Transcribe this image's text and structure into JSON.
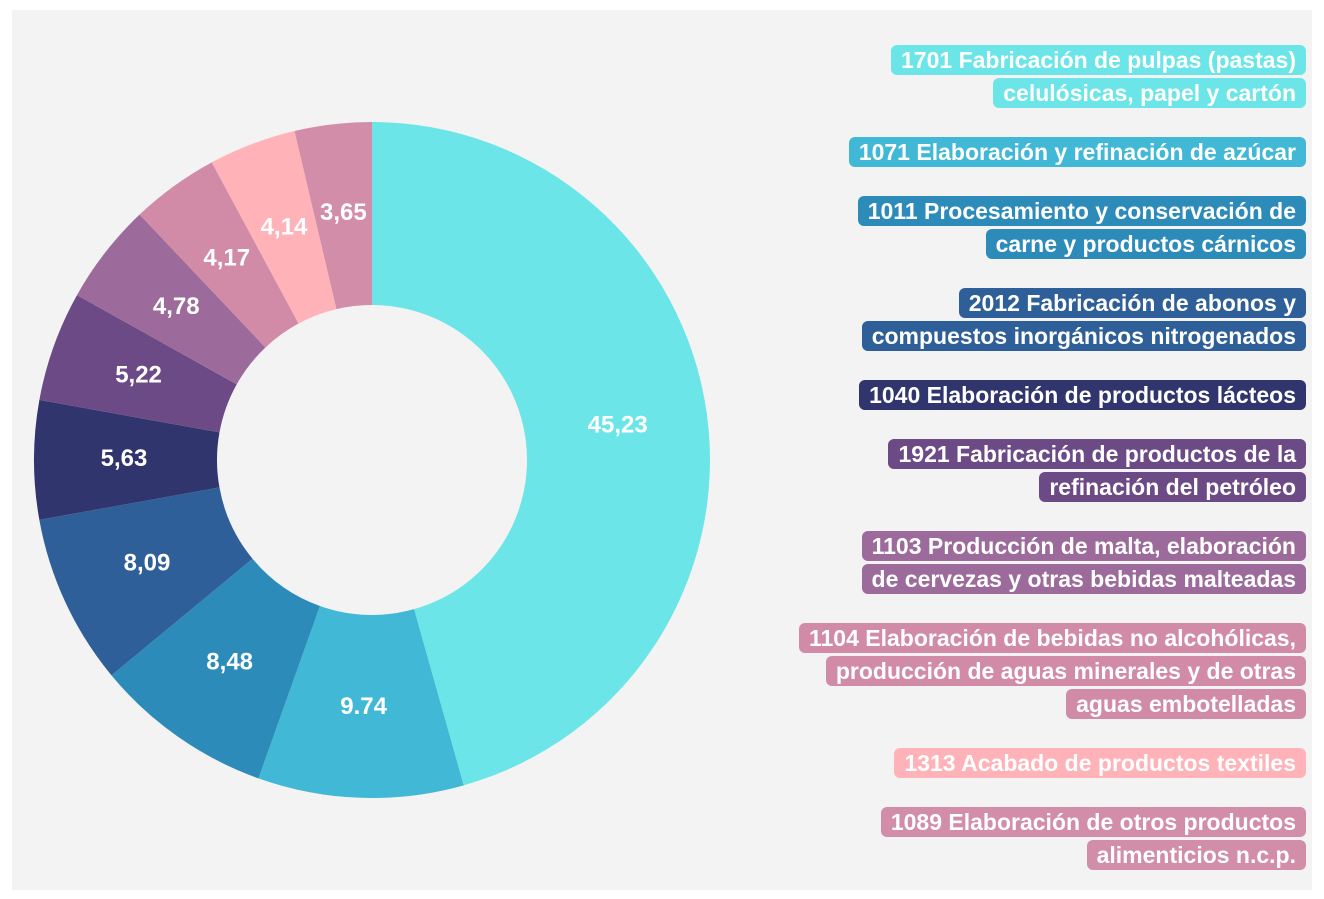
{
  "chart_data": {
    "type": "donut",
    "categories": [
      "1701 Fabricación de pulpas (pastas)\ncelulósicas, papel y cartón",
      "1071 Elaboración y refinación de azúcar",
      "1011 Procesamiento y conservación de\ncarne y productos cárnicos",
      "2012 Fabricación de abonos y\ncompuestos inorgánicos nitrogenados",
      "1040 Elaboración de productos lácteos",
      "1921 Fabricación de productos de la\nrefinación del petróleo",
      "1103 Producción de malta, elaboración\nde cervezas y otras bebidas malteadas",
      "1104 Elaboración de bebidas no alcohólicas,\nproducción de aguas minerales y de otras\naguas embotelladas",
      "1313 Acabado de productos textiles",
      "1089 Elaboración de otros productos\nalimenticios n.c.p."
    ],
    "values": [
      45.23,
      9.74,
      8.48,
      8.09,
      5.63,
      5.22,
      4.78,
      4.17,
      4.14,
      3.65
    ],
    "value_labels": [
      "45,23",
      "9.74",
      "8,48",
      "8,09",
      "5,63",
      "5,22",
      "4,78",
      "4,17",
      "4,14",
      "3,65"
    ],
    "colors": [
      "#6ce5e8",
      "#41b8d5",
      "#2d8bba",
      "#2f5f98",
      "#31356e",
      "#6c4a86",
      "#9c6b9c",
      "#d28ba6",
      "#ffb3b8",
      "#d28ea8"
    ]
  }
}
